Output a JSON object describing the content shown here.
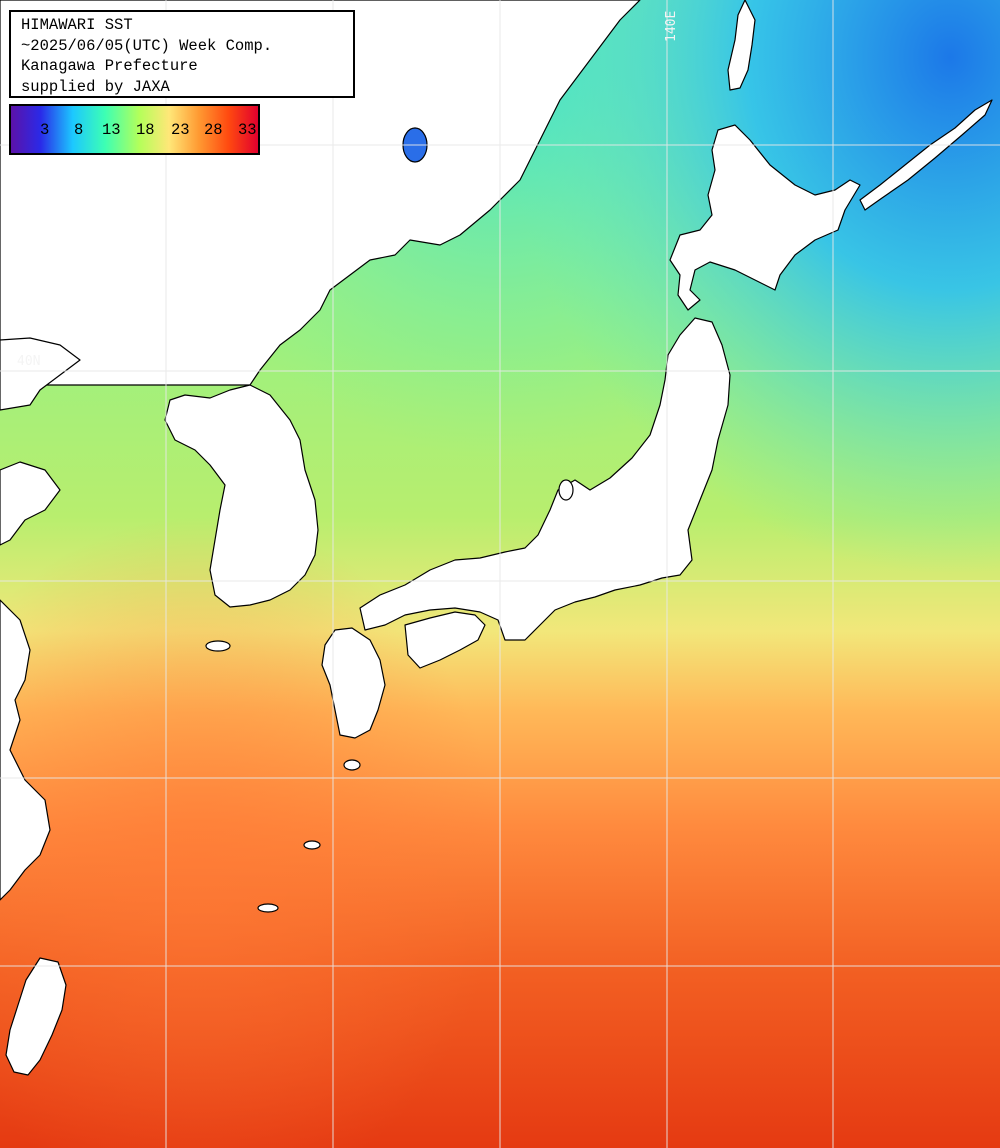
{
  "title": {
    "line1": "HIMAWARI SST",
    "line2": "~2025/06/05(UTC) Week Comp.",
    "line3": "Kanagawa Prefecture",
    "line4": "supplied by JAXA"
  },
  "legend": {
    "ticks": [
      "3",
      "8",
      "13",
      "18",
      "23",
      "28",
      "33"
    ],
    "colors": [
      "#5c12a8",
      "#2a2ae8",
      "#1cc8ff",
      "#3cffb4",
      "#b4ff5a",
      "#ffe778",
      "#ff9a32",
      "#ff4a10",
      "#e2002e"
    ]
  },
  "grid_labels": {
    "lon_140": "140E",
    "lat_40": "40N"
  },
  "colors": {
    "land": "#ffffff",
    "coast": "#000000",
    "grid": "#e8e8e8"
  }
}
